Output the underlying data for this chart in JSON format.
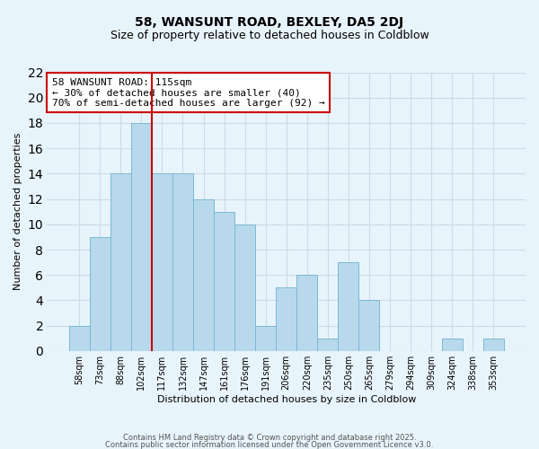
{
  "title": "58, WANSUNT ROAD, BEXLEY, DA5 2DJ",
  "subtitle": "Size of property relative to detached houses in Coldblow",
  "xlabel": "Distribution of detached houses by size in Coldblow",
  "ylabel": "Number of detached properties",
  "bar_labels": [
    "58sqm",
    "73sqm",
    "88sqm",
    "102sqm",
    "117sqm",
    "132sqm",
    "147sqm",
    "161sqm",
    "176sqm",
    "191sqm",
    "206sqm",
    "220sqm",
    "235sqm",
    "250sqm",
    "265sqm",
    "279sqm",
    "294sqm",
    "309sqm",
    "324sqm",
    "338sqm",
    "353sqm"
  ],
  "bar_values": [
    2,
    9,
    14,
    18,
    14,
    14,
    12,
    11,
    10,
    2,
    5,
    6,
    1,
    7,
    4,
    0,
    0,
    0,
    1,
    0,
    1
  ],
  "bar_color": "#b8d9ec",
  "bar_edge_color": "#7ab8d4",
  "bg_color": "#e8f4fb",
  "grid_color": "#c8dce8",
  "vline_color": "#cc0000",
  "vline_xindex": 4,
  "ylim": [
    0,
    22
  ],
  "yticks": [
    0,
    2,
    4,
    6,
    8,
    10,
    12,
    14,
    16,
    18,
    20,
    22
  ],
  "annotation_title": "58 WANSUNT ROAD: 115sqm",
  "annotation_line1": "← 30% of detached houses are smaller (40)",
  "annotation_line2": "70% of semi-detached houses are larger (92) →",
  "footer_line1": "Contains HM Land Registry data © Crown copyright and database right 2025.",
  "footer_line2": "Contains public sector information licensed under the Open Government Licence v3.0.",
  "title_fontsize": 10,
  "subtitle_fontsize": 9,
  "tick_fontsize": 7,
  "axis_label_fontsize": 8,
  "annotation_fontsize": 8,
  "footer_fontsize": 6
}
